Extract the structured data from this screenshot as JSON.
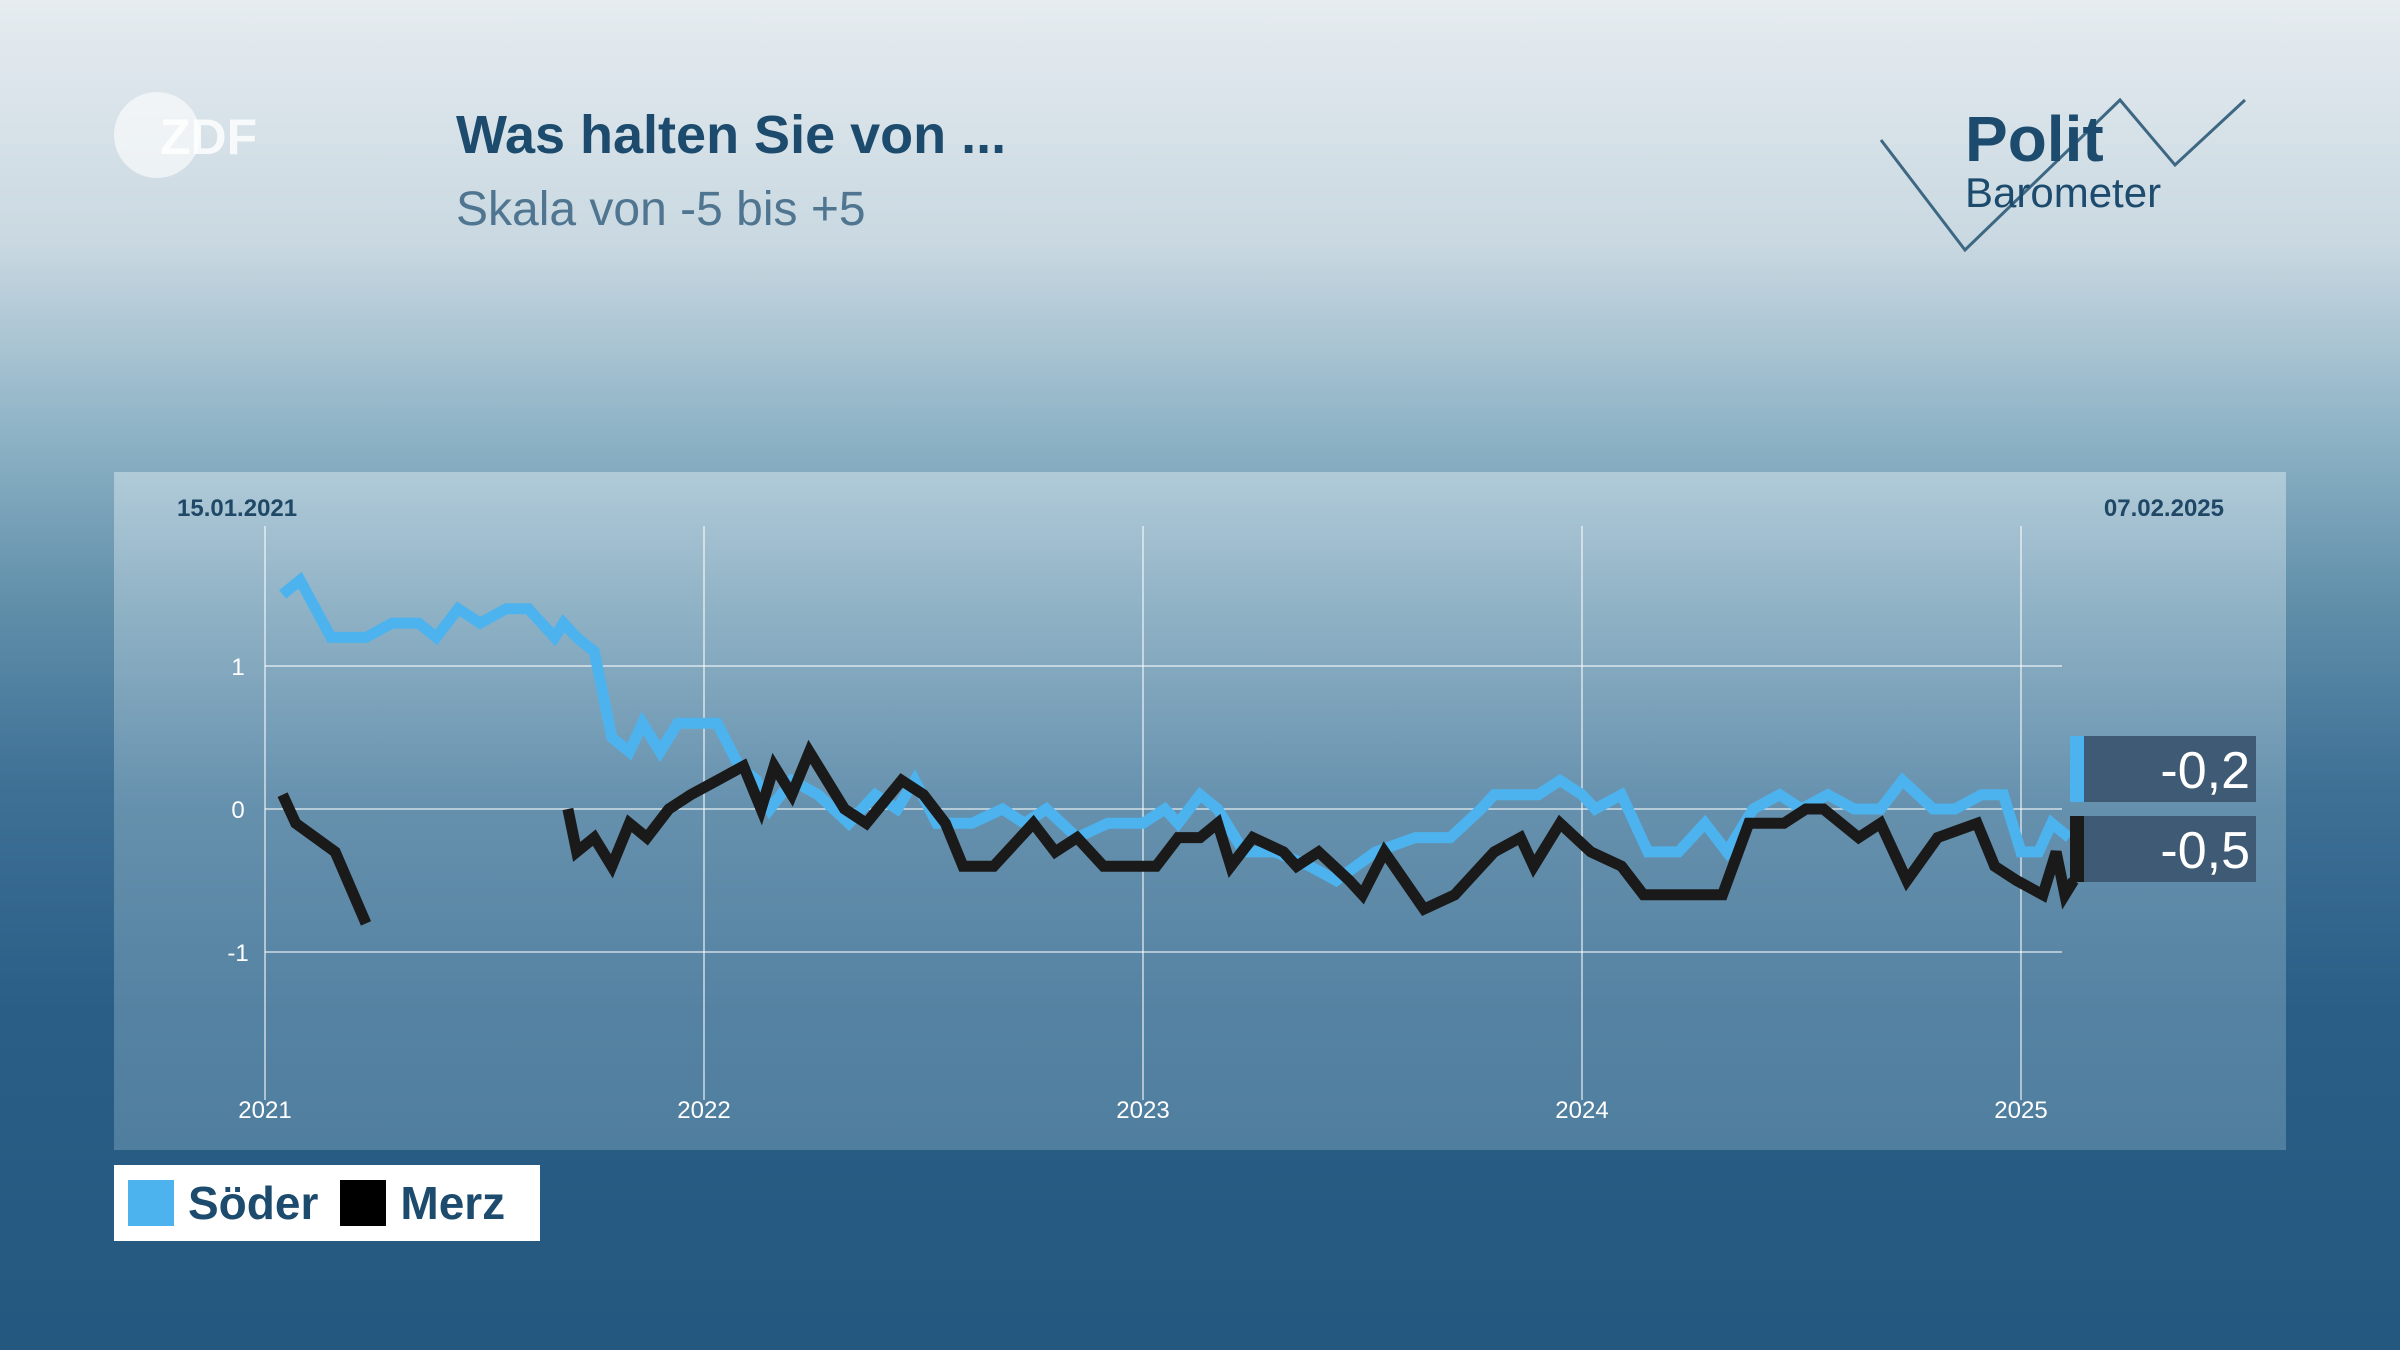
{
  "header": {
    "title": "Was halten Sie von ...",
    "subtitle": "Skala von -5 bis +5",
    "brand_logo": "ZDF",
    "show_logo_line1": "Polit",
    "show_logo_line2": "Barometer"
  },
  "colors": {
    "soeder": "#4db3ee",
    "merz": "#1a1a1a",
    "value_box": "#3e5a74",
    "title": "#1d4b6e"
  },
  "legend": {
    "items": [
      {
        "label": "Söder",
        "color": "#4db3ee"
      },
      {
        "label": "Merz",
        "color": "#000000"
      }
    ]
  },
  "chart_data": {
    "type": "line",
    "start_date_label": "15.01.2021",
    "end_date_label": "07.02.2025",
    "x_tick_labels": [
      "2021",
      "2022",
      "2023",
      "2024",
      "2025"
    ],
    "y_tick_labels": [
      "1",
      "0",
      "-1"
    ],
    "ylim": [
      -1.9,
      2
    ],
    "x_unit": "year",
    "xlim": [
      2021.0,
      2025.1
    ],
    "grid": true,
    "series": [
      {
        "name": "Söder",
        "color": "#4db3ee",
        "latest_label": "-0,2",
        "points": [
          [
            2021.04,
            1.5
          ],
          [
            2021.08,
            1.6
          ],
          [
            2021.15,
            1.2
          ],
          [
            2021.23,
            1.2
          ],
          [
            2021.29,
            1.3
          ],
          [
            2021.35,
            1.3
          ],
          [
            2021.39,
            1.2
          ],
          [
            2021.44,
            1.4
          ],
          [
            2021.49,
            1.3
          ],
          [
            2021.55,
            1.4
          ],
          [
            2021.6,
            1.4
          ],
          [
            2021.66,
            1.2
          ],
          [
            2021.68,
            1.3
          ],
          [
            2021.71,
            1.2
          ],
          [
            2021.75,
            1.1
          ],
          [
            2021.79,
            0.5
          ],
          [
            2021.83,
            0.4
          ],
          [
            2021.86,
            0.6
          ],
          [
            2021.9,
            0.4
          ],
          [
            2021.94,
            0.6
          ],
          [
            2022.03,
            0.6
          ],
          [
            2022.08,
            0.3
          ],
          [
            2022.12,
            0.2
          ],
          [
            2022.15,
            0.0
          ],
          [
            2022.2,
            0.2
          ],
          [
            2022.26,
            0.1
          ],
          [
            2022.33,
            -0.1
          ],
          [
            2022.39,
            0.1
          ],
          [
            2022.44,
            0.0
          ],
          [
            2022.48,
            0.2
          ],
          [
            2022.53,
            -0.1
          ],
          [
            2022.61,
            -0.1
          ],
          [
            2022.68,
            0.0
          ],
          [
            2022.73,
            -0.1
          ],
          [
            2022.78,
            0.0
          ],
          [
            2022.85,
            -0.2
          ],
          [
            2022.92,
            -0.1
          ],
          [
            2023.0,
            -0.1
          ],
          [
            2023.05,
            0.0
          ],
          [
            2023.08,
            -0.1
          ],
          [
            2023.13,
            0.1
          ],
          [
            2023.17,
            0.0
          ],
          [
            2023.23,
            -0.3
          ],
          [
            2023.3,
            -0.3
          ],
          [
            2023.38,
            -0.4
          ],
          [
            2023.44,
            -0.5
          ],
          [
            2023.53,
            -0.3
          ],
          [
            2023.62,
            -0.2
          ],
          [
            2023.7,
            -0.2
          ],
          [
            2023.77,
            0.0
          ],
          [
            2023.8,
            0.1
          ],
          [
            2023.9,
            0.1
          ],
          [
            2023.95,
            0.2
          ],
          [
            2024.0,
            0.1
          ],
          [
            2024.03,
            0.0
          ],
          [
            2024.09,
            0.1
          ],
          [
            2024.15,
            -0.3
          ],
          [
            2024.22,
            -0.3
          ],
          [
            2024.28,
            -0.1
          ],
          [
            2024.33,
            -0.3
          ],
          [
            2024.39,
            0.0
          ],
          [
            2024.45,
            0.1
          ],
          [
            2024.5,
            0.0
          ],
          [
            2024.56,
            0.1
          ],
          [
            2024.62,
            0.0
          ],
          [
            2024.68,
            0.0
          ],
          [
            2024.73,
            0.2
          ],
          [
            2024.8,
            0.0
          ],
          [
            2024.85,
            0.0
          ],
          [
            2024.91,
            0.1
          ],
          [
            2024.96,
            0.1
          ],
          [
            2025.0,
            -0.3
          ],
          [
            2025.04,
            -0.3
          ],
          [
            2025.07,
            -0.1
          ],
          [
            2025.11,
            -0.2
          ]
        ]
      },
      {
        "name": "Merz",
        "color": "#1a1a1a",
        "latest_label": "-0,5",
        "segments": [
          [
            [
              2021.04,
              0.1
            ],
            [
              2021.07,
              -0.1
            ],
            [
              2021.16,
              -0.3
            ],
            [
              2021.23,
              -0.8
            ]
          ],
          [
            [
              2021.69,
              0.0
            ],
            [
              2021.71,
              -0.3
            ],
            [
              2021.75,
              -0.2
            ],
            [
              2021.79,
              -0.4
            ],
            [
              2021.83,
              -0.1
            ],
            [
              2021.87,
              -0.2
            ],
            [
              2021.92,
              0.0
            ],
            [
              2021.97,
              0.1
            ],
            [
              2022.03,
              0.2
            ],
            [
              2022.09,
              0.3
            ],
            [
              2022.13,
              0.0
            ],
            [
              2022.16,
              0.3
            ],
            [
              2022.2,
              0.1
            ],
            [
              2022.24,
              0.4
            ],
            [
              2022.32,
              0.0
            ],
            [
              2022.37,
              -0.1
            ],
            [
              2022.45,
              0.2
            ],
            [
              2022.5,
              0.1
            ],
            [
              2022.55,
              -0.1
            ],
            [
              2022.59,
              -0.4
            ],
            [
              2022.66,
              -0.4
            ],
            [
              2022.75,
              -0.1
            ],
            [
              2022.8,
              -0.3
            ],
            [
              2022.85,
              -0.2
            ],
            [
              2022.91,
              -0.4
            ],
            [
              2023.03,
              -0.4
            ],
            [
              2023.08,
              -0.2
            ],
            [
              2023.13,
              -0.2
            ],
            [
              2023.17,
              -0.1
            ],
            [
              2023.2,
              -0.4
            ],
            [
              2023.25,
              -0.2
            ],
            [
              2023.32,
              -0.3
            ],
            [
              2023.35,
              -0.4
            ],
            [
              2023.4,
              -0.3
            ],
            [
              2023.47,
              -0.5
            ],
            [
              2023.5,
              -0.6
            ],
            [
              2023.55,
              -0.3
            ],
            [
              2023.64,
              -0.7
            ],
            [
              2023.71,
              -0.6
            ],
            [
              2023.8,
              -0.3
            ],
            [
              2023.86,
              -0.2
            ],
            [
              2023.89,
              -0.4
            ],
            [
              2023.95,
              -0.1
            ],
            [
              2024.02,
              -0.3
            ],
            [
              2024.09,
              -0.4
            ],
            [
              2024.14,
              -0.6
            ],
            [
              2024.32,
              -0.6
            ],
            [
              2024.38,
              -0.1
            ],
            [
              2024.46,
              -0.1
            ],
            [
              2024.51,
              0.0
            ],
            [
              2024.55,
              0.0
            ],
            [
              2024.63,
              -0.2
            ],
            [
              2024.68,
              -0.1
            ],
            [
              2024.74,
              -0.5
            ],
            [
              2024.81,
              -0.2
            ],
            [
              2024.9,
              -0.1
            ],
            [
              2024.94,
              -0.4
            ],
            [
              2024.99,
              -0.5
            ],
            [
              2025.05,
              -0.6
            ],
            [
              2025.08,
              -0.3
            ],
            [
              2025.1,
              -0.6
            ],
            [
              2025.12,
              -0.5
            ]
          ]
        ]
      }
    ]
  }
}
